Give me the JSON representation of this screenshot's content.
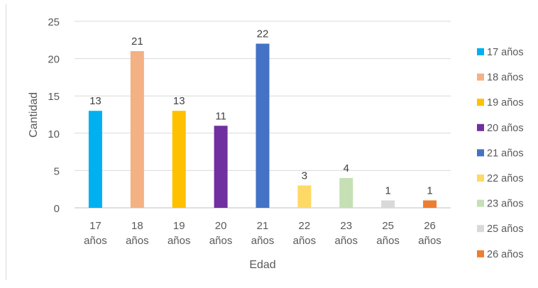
{
  "chart_data": {
    "type": "bar",
    "categories": [
      "17 años",
      "18 años",
      "19 años",
      "20 años",
      "21 años",
      "22 años",
      "23 años",
      "25 años",
      "26 años"
    ],
    "values": [
      13,
      21,
      13,
      11,
      22,
      3,
      4,
      1,
      1
    ],
    "colors": [
      "#00b0f0",
      "#f4b183",
      "#ffc000",
      "#7030a0",
      "#4472c4",
      "#ffd966",
      "#c5e0b4",
      "#d9d9d9",
      "#ed7d31"
    ],
    "title": "",
    "xlabel": "Edad",
    "ylabel": "Cantidad",
    "ylim": [
      0,
      25
    ],
    "yticks": [
      0,
      5,
      10,
      15,
      20,
      25
    ],
    "grid": true,
    "data_labels": true,
    "legend": {
      "position": "right",
      "entries": [
        "17 años",
        "18 años",
        "19 años",
        "20 años",
        "21 años",
        "22 años",
        "23 años",
        "25 años",
        "26 años"
      ]
    }
  }
}
